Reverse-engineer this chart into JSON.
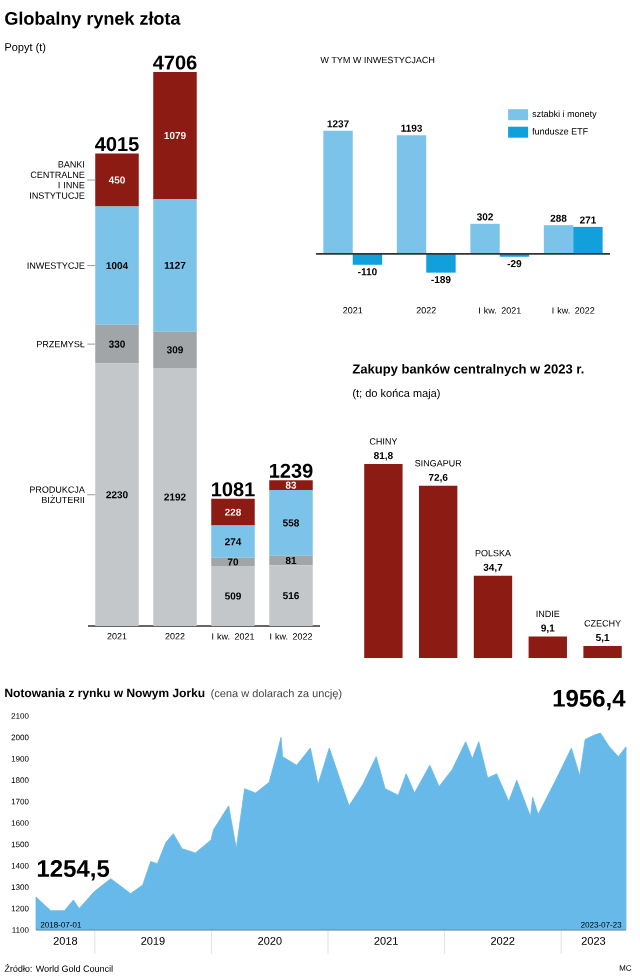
{
  "chart_data": [
    {
      "type": "bar",
      "title": "Globalny rynek złota",
      "subtitle": "Popyt (t)",
      "categories": [
        "2021",
        "2022",
        "I kw. 2021",
        "I kw. 2022"
      ],
      "stacked": true,
      "data_labels": true,
      "totals": [
        "4015",
        "4706",
        "1081",
        "1239"
      ],
      "series": [
        {
          "name": "PRODUKCJA BIŻUTERII",
          "color": "#c3c7c9",
          "values": [
            2230,
            2192,
            509,
            516
          ]
        },
        {
          "name": "PRZEMYSŁ",
          "color": "#a1a5a7",
          "values": [
            330,
            309,
            70,
            81
          ]
        },
        {
          "name": "INWESTYCJE",
          "color": "#7cc3ea",
          "values": [
            1004,
            1127,
            274,
            558
          ]
        },
        {
          "name": "BANKI CENTRALNE I INNE INSTYTUCJE",
          "color": "#8c1b13",
          "values": [
            450,
            1079,
            228,
            83
          ]
        }
      ]
    },
    {
      "type": "bar",
      "title": "W TYM W INWESTYCJACH",
      "categories": [
        "2021",
        "2022",
        "I kw. 2021",
        "I kw. 2022"
      ],
      "data_labels": true,
      "legend": "top right",
      "series": [
        {
          "name": "sztabki i monety",
          "color": "#7cc3ea",
          "values": [
            1237,
            1193,
            302,
            288
          ]
        },
        {
          "name": "fundusze ETF",
          "color": "#12a0dc",
          "values": [
            -110,
            -189,
            -29,
            271
          ]
        }
      ]
    },
    {
      "type": "bar",
      "title": "Zakupy banków centralnych w 2023 r.",
      "subtitle": "(t; do końca maja)",
      "categories": [
        "CHINY",
        "SINGAPUR",
        "POLSKA",
        "INDIE",
        "CZECHY"
      ],
      "values": [
        81.8,
        72.6,
        34.7,
        9.1,
        5.1
      ],
      "value_labels": [
        "81,8",
        "72,6",
        "34,7",
        "9,1",
        "5,1"
      ],
      "data_labels": true,
      "color": "#8c1b13"
    },
    {
      "type": "area",
      "title": "Notowania z rynku w Nowym Jorku",
      "subtitle": "(cena w dolarach za uncję)",
      "color": "#66b9e8",
      "xlim": [
        "2018-07-01",
        "2023-07-23"
      ],
      "ylim": [
        1100,
        2100
      ],
      "yticks": [
        1100,
        1200,
        1300,
        1400,
        1500,
        1600,
        1700,
        1800,
        1900,
        2000,
        2100
      ],
      "xticks": [
        {
          "value": "2018-10-01",
          "label": "2018"
        },
        {
          "value": "2019-01-01",
          "label": null
        },
        {
          "value": "2019-07-02",
          "label": "2019"
        },
        {
          "value": "2020-01-01",
          "label": null
        },
        {
          "value": "2020-07-02",
          "label": "2020"
        },
        {
          "value": "2021-01-01",
          "label": null
        },
        {
          "value": "2021-07-02",
          "label": "2021"
        },
        {
          "value": "2022-01-01",
          "label": null
        },
        {
          "value": "2022-07-02",
          "label": "2022"
        },
        {
          "value": "2023-01-01",
          "label": null
        },
        {
          "value": "2023-04-12",
          "label": "2023"
        }
      ],
      "x": [
        "2018-07-01",
        "2018-08-16",
        "2018-09-28",
        "2018-10-26",
        "2018-11-13",
        "2018-12-31",
        "2019-02-20",
        "2019-04-23",
        "2019-05-31",
        "2019-06-25",
        "2019-07-16",
        "2019-08-12",
        "2019-09-04",
        "2019-10-01",
        "2019-11-12",
        "2019-12-31",
        "2020-01-08",
        "2020-02-24",
        "2020-03-19",
        "2020-04-14",
        "2020-05-18",
        "2020-06-30",
        "2020-07-27",
        "2020-08-06",
        "2020-08-11",
        "2020-09-24",
        "2020-11-06",
        "2020-11-30",
        "2021-01-05",
        "2021-03-08",
        "2021-04-20",
        "2021-06-01",
        "2021-06-29",
        "2021-08-09",
        "2021-09-03",
        "2021-09-29",
        "2021-11-16",
        "2021-12-15",
        "2022-01-25",
        "2022-03-08",
        "2022-03-29",
        "2022-04-18",
        "2022-05-16",
        "2022-06-13",
        "2022-07-21",
        "2022-08-15",
        "2022-09-27",
        "2022-10-04",
        "2022-10-21",
        "2022-11-04",
        "2022-12-15",
        "2023-02-02",
        "2023-02-28",
        "2023-03-17",
        "2023-04-13",
        "2023-05-04",
        "2023-05-30",
        "2023-06-29",
        "2023-07-23"
      ],
      "values": [
        1254.5,
        1190,
        1190,
        1240,
        1200,
        1280,
        1340,
        1270,
        1310,
        1420,
        1410,
        1510,
        1550,
        1480,
        1460,
        1520,
        1570,
        1680,
        1480,
        1760,
        1740,
        1790,
        1940,
        2000,
        1910,
        1870,
        1950,
        1780,
        1950,
        1680,
        1780,
        1910,
        1760,
        1730,
        1830,
        1740,
        1870,
        1770,
        1850,
        1980,
        1900,
        1980,
        1810,
        1830,
        1700,
        1800,
        1630,
        1720,
        1640,
        1680,
        1800,
        1950,
        1820,
        1990,
        2010,
        2020,
        1960,
        1910,
        1956.4
      ],
      "annotations": [
        {
          "text": "1254,5",
          "x": "2018-07-01",
          "y": 1254.5
        },
        {
          "text": "1956,4",
          "x": "2023-07-23",
          "y": 1956.4
        },
        {
          "text": "2018-07-01",
          "x": "2018-07-01",
          "y": 1100
        },
        {
          "text": "2023-07-23",
          "x": "2023-07-23",
          "y": 1100
        },
        "Źródło: World Gold Council",
        "MC"
      ]
    }
  ]
}
